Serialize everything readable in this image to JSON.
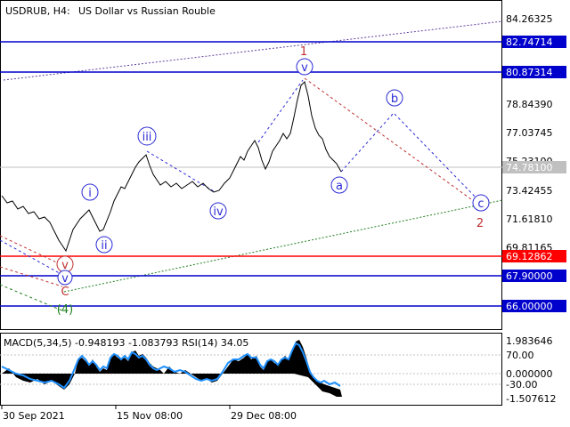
{
  "header": {
    "symbol": "USDRUB, H4:",
    "description": "US Dollar vs Russian Rouble"
  },
  "price_axis": {
    "ticks": [
      "84.26325",
      "80.87314",
      "78.84390",
      "77.03745",
      "75.23100",
      "73.42455",
      "71.61810",
      "69.81165"
    ],
    "current_price": "74.78100"
  },
  "levels": [
    {
      "label": "82.74714",
      "price": 82.74714,
      "color": "#0000cc"
    },
    {
      "label": "80.87314",
      "price": 80.87314,
      "color": "#0000cc"
    },
    {
      "label": "69.12862",
      "price": 69.12862,
      "color": "#ff0000"
    },
    {
      "label": "67.90000",
      "price": 67.9,
      "color": "#0000cc"
    },
    {
      "label": "66.00000",
      "price": 66.0,
      "color": "#0000cc"
    }
  ],
  "wave_labels": {
    "i": "i",
    "ii": "ii",
    "iii": "iii",
    "iv": "iv",
    "v_top": "v",
    "a": "a",
    "b": "b",
    "c": "c",
    "red_v": "v",
    "blue_v": "v",
    "C": "C",
    "four": "(4)",
    "one": "1",
    "two": "2"
  },
  "indicator": {
    "title": "MACD(5,34,5) -0.948193 -1.083793 RSI(14) 34.05",
    "ticks": [
      "1.983646",
      "70.00",
      "0.000000",
      "-30.00",
      "-1.507612"
    ]
  },
  "time_axis": {
    "labels": [
      "30 Sep 2021",
      "15 Nov 08:00",
      "29 Dec 08:00"
    ]
  },
  "colors": {
    "grid": "#c0c0c0",
    "blue_level": "#0000cc",
    "red_level": "#ff0000",
    "wave_blue": "#2b2bd6",
    "wave_red": "#c03030",
    "wave_green": "#208020",
    "trend_purple": "#6040a0",
    "macd_signal": "#1e90ff"
  }
}
